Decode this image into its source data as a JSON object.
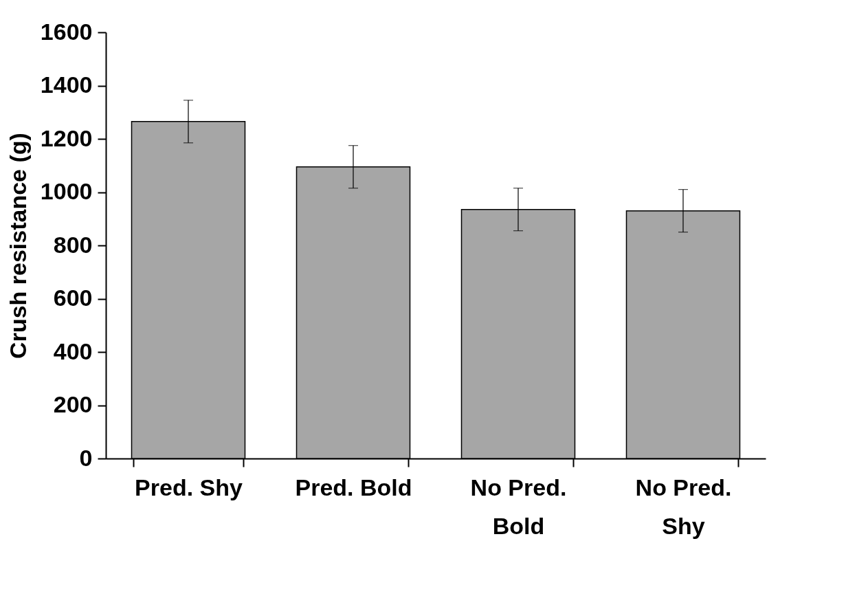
{
  "chart_data": {
    "type": "bar",
    "ylabel": "Crush resistance (g)",
    "categories": [
      "Pred. Shy",
      "Pred. Bold",
      "No Pred. Bold",
      "No Pred. Shy"
    ],
    "values": [
      1265,
      1095,
      935,
      930
    ],
    "errors": [
      80,
      80,
      80,
      80
    ],
    "color": "#a6a6a6",
    "ylim": [
      0,
      1600
    ],
    "yticks": [
      0,
      200,
      400,
      600,
      800,
      1000,
      1200,
      1400,
      1600
    ],
    "grid": false
  }
}
